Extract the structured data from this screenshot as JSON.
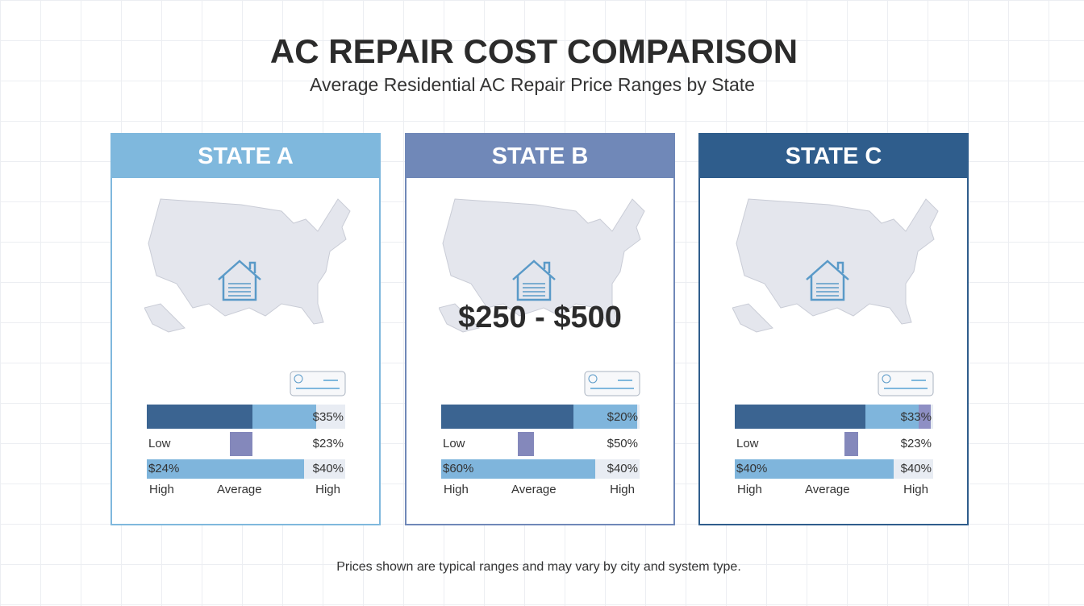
{
  "header": {
    "title": "AC REPAIR COST COMPARISON",
    "subtitle": "Average Residential AC Repair Price Ranges by State"
  },
  "panels": [
    {
      "title": "STATE A",
      "rows": [
        {
          "right": "$35%"
        },
        {
          "left": "Low",
          "right": "$23%"
        },
        {
          "left": "$24%",
          "right": "$40%"
        }
      ],
      "labels": [
        "High",
        "Average",
        "High"
      ]
    },
    {
      "title": "STATE B",
      "price": "$250 - $500",
      "rows": [
        {
          "right": "$20%"
        },
        {
          "left": "Low",
          "right": "$50%"
        },
        {
          "left": "$60%",
          "right": "$40%"
        }
      ],
      "labels": [
        "High",
        "Average",
        "High"
      ]
    },
    {
      "title": "STATE C",
      "rows": [
        {
          "right": "$33%"
        },
        {
          "left": "Low",
          "right": "$23%"
        },
        {
          "left": "$40%",
          "right": "$40%"
        }
      ],
      "labels": [
        "High",
        "Average",
        "High"
      ]
    }
  ],
  "footnote": "Prices shown are typical ranges and may vary by city and system type."
}
